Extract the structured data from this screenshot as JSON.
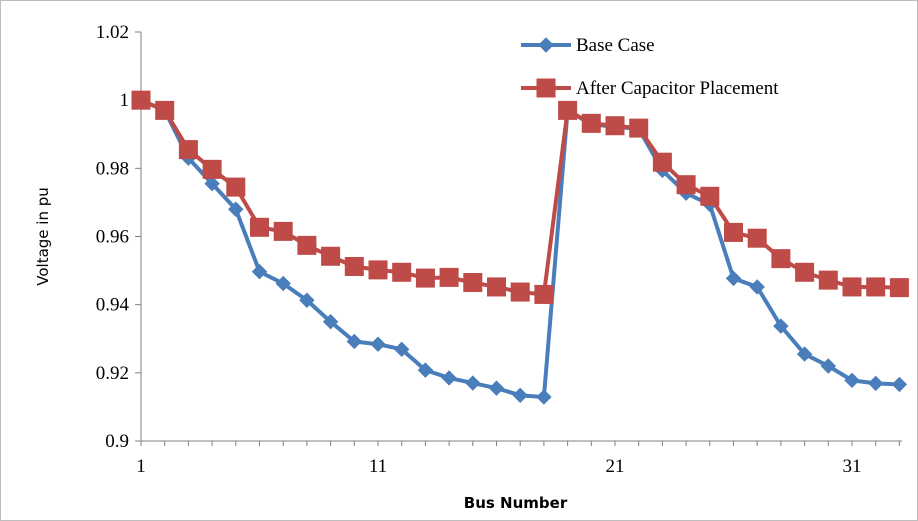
{
  "chart_data": {
    "type": "line",
    "xlabel": "Bus Number",
    "ylabel": "Voltage in pu",
    "xlim": [
      1,
      33
    ],
    "ylim": [
      0.9,
      1.02
    ],
    "x_ticks": [
      1,
      11,
      21,
      31
    ],
    "y_ticks": [
      0.9,
      0.92,
      0.94,
      0.96,
      0.98,
      1,
      1.02
    ],
    "y_tick_labels": [
      "0.9",
      "0.92",
      "0.94",
      "0.96",
      "0.98",
      "1",
      "1.02"
    ],
    "x_tick_labels": [
      "1",
      "11",
      "21",
      "31"
    ],
    "grid": false,
    "legend_position": "top-right",
    "x": [
      1,
      2,
      3,
      4,
      5,
      6,
      7,
      8,
      9,
      10,
      11,
      12,
      13,
      14,
      15,
      16,
      17,
      18,
      19,
      20,
      21,
      22,
      23,
      24,
      25,
      26,
      27,
      28,
      29,
      30,
      31,
      32,
      33
    ],
    "series": [
      {
        "name": "Base Case",
        "color": "#4a7ebb",
        "marker": "diamond",
        "values": [
          1.0,
          0.997,
          0.983,
          0.9755,
          0.968,
          0.9497,
          0.9462,
          0.9413,
          0.935,
          0.9292,
          0.9284,
          0.9269,
          0.9208,
          0.9185,
          0.917,
          0.9155,
          0.9134,
          0.9129,
          0.997,
          0.9929,
          0.9922,
          0.9916,
          0.9794,
          0.9727,
          0.9694,
          0.9477,
          0.9452,
          0.9337,
          0.9255,
          0.922,
          0.9178,
          0.9169,
          0.9166
        ]
      },
      {
        "name": "After Capacitor Placement",
        "color": "#be4b48",
        "marker": "square",
        "values": [
          1.0,
          0.997,
          0.9855,
          0.9797,
          0.9745,
          0.9627,
          0.9615,
          0.9574,
          0.9542,
          0.9512,
          0.9502,
          0.9495,
          0.9478,
          0.948,
          0.9465,
          0.9452,
          0.9437,
          0.943,
          0.997,
          0.9932,
          0.9925,
          0.9918,
          0.9818,
          0.9752,
          0.9718,
          0.9612,
          0.9595,
          0.9535,
          0.9495,
          0.9472,
          0.9452,
          0.9452,
          0.945
        ]
      }
    ]
  }
}
